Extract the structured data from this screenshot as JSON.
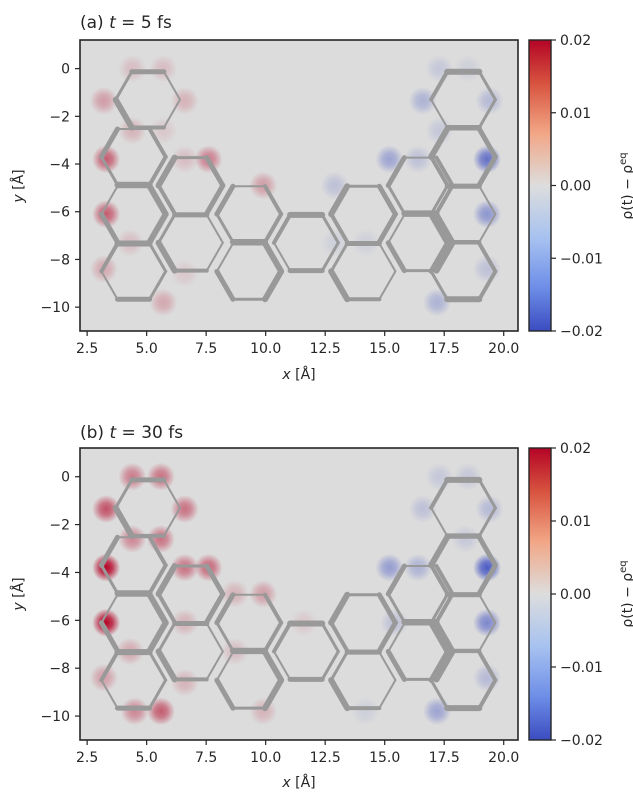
{
  "colorbar": {
    "label": "ρ(t) − ρ^eq",
    "label_main": "ρ(t) − ρ",
    "label_sup": "eq",
    "ticks": [
      "0.02",
      "0.01",
      "0.00",
      "−0.01",
      "−0.02"
    ],
    "tick_values": [
      0.02,
      0.01,
      0.0,
      -0.01,
      -0.02
    ],
    "range": [
      -0.02,
      0.02
    ],
    "colormap": "coolwarm",
    "colors": {
      "high": "#b40426",
      "mid": "#dddddd",
      "low": "#3b4cc0"
    }
  },
  "chart_data": [
    {
      "type": "heatmap",
      "title": "(a) t = 5 fs",
      "title_prefix": "(a) ",
      "title_var": "t",
      "title_rest": " = 5 fs",
      "xlabel_var": "x",
      "xlabel_unit": " [Å]",
      "ylabel_var": "y",
      "ylabel_unit": " [Å]",
      "xlim": [
        2.2,
        20.6
      ],
      "ylim": [
        -11.0,
        1.2
      ],
      "x_ticks": [
        "2.5",
        "5.0",
        "7.5",
        "10.0",
        "12.5",
        "15.0",
        "17.5",
        "20.0"
      ],
      "y_ticks": [
        "0",
        "−2",
        "−4",
        "−6",
        "−8",
        "−10"
      ],
      "x_tick_values": [
        2.5,
        5.0,
        7.5,
        10.0,
        12.5,
        15.0,
        17.5,
        20.0
      ],
      "y_tick_values": [
        0,
        -2,
        -4,
        -6,
        -8,
        -10
      ],
      "background": "#dcdcdc",
      "bond_color": "#999999",
      "atoms": [
        {
          "x": 4.4,
          "y": 0.0,
          "v": 0.003
        },
        {
          "x": 5.7,
          "y": 0.0,
          "v": 0.003
        },
        {
          "x": 3.2,
          "y": -1.35,
          "v": 0.006
        },
        {
          "x": 6.6,
          "y": -1.35,
          "v": 0.004
        },
        {
          "x": 4.4,
          "y": -2.6,
          "v": 0.004
        },
        {
          "x": 5.7,
          "y": -2.6,
          "v": 0.002
        },
        {
          "x": 3.3,
          "y": -3.8,
          "v": 0.012
        },
        {
          "x": 6.6,
          "y": -3.8,
          "v": 0.003
        },
        {
          "x": 7.6,
          "y": -3.8,
          "v": 0.009
        },
        {
          "x": 9.9,
          "y": -4.9,
          "v": 0.006
        },
        {
          "x": 3.3,
          "y": -6.1,
          "v": 0.012
        },
        {
          "x": 4.3,
          "y": -7.3,
          "v": 0.003
        },
        {
          "x": 3.2,
          "y": -8.4,
          "v": 0.005
        },
        {
          "x": 5.7,
          "y": -9.8,
          "v": 0.005
        },
        {
          "x": 6.6,
          "y": -8.6,
          "v": 0.002
        },
        {
          "x": 17.3,
          "y": 0.0,
          "v": -0.003
        },
        {
          "x": 18.5,
          "y": 0.0,
          "v": -0.002
        },
        {
          "x": 16.6,
          "y": -1.35,
          "v": -0.006
        },
        {
          "x": 19.4,
          "y": -1.35,
          "v": -0.005
        },
        {
          "x": 17.3,
          "y": -2.6,
          "v": -0.003
        },
        {
          "x": 15.2,
          "y": -3.8,
          "v": -0.008
        },
        {
          "x": 16.4,
          "y": -3.8,
          "v": -0.004
        },
        {
          "x": 19.3,
          "y": -3.8,
          "v": -0.015
        },
        {
          "x": 12.9,
          "y": -4.9,
          "v": -0.004
        },
        {
          "x": 19.3,
          "y": -6.1,
          "v": -0.01
        },
        {
          "x": 12.9,
          "y": -7.3,
          "v": -0.002
        },
        {
          "x": 19.3,
          "y": -8.4,
          "v": -0.004
        },
        {
          "x": 17.2,
          "y": -9.8,
          "v": -0.006
        },
        {
          "x": 14.2,
          "y": -7.3,
          "v": -0.002
        }
      ]
    },
    {
      "type": "heatmap",
      "title": "(b) t = 30 fs",
      "title_prefix": "(b) ",
      "title_var": "t",
      "title_rest": " = 30 fs",
      "xlabel_var": "x",
      "xlabel_unit": " [Å]",
      "ylabel_var": "y",
      "ylabel_unit": " [Å]",
      "xlim": [
        2.2,
        20.6
      ],
      "ylim": [
        -11.0,
        1.2
      ],
      "x_ticks": [
        "2.5",
        "5.0",
        "7.5",
        "10.0",
        "12.5",
        "15.0",
        "17.5",
        "20.0"
      ],
      "y_ticks": [
        "0",
        "−2",
        "−4",
        "−6",
        "−8",
        "−10"
      ],
      "x_tick_values": [
        2.5,
        5.0,
        7.5,
        10.0,
        12.5,
        15.0,
        17.5,
        20.0
      ],
      "y_tick_values": [
        0,
        -2,
        -4,
        -6,
        -8,
        -10
      ],
      "background": "#dcdcdc",
      "bond_color": "#999999",
      "atoms": [
        {
          "x": 4.4,
          "y": 0.0,
          "v": 0.009
        },
        {
          "x": 5.6,
          "y": 0.0,
          "v": 0.01
        },
        {
          "x": 3.3,
          "y": -1.35,
          "v": 0.013
        },
        {
          "x": 6.6,
          "y": -1.35,
          "v": 0.01
        },
        {
          "x": 4.4,
          "y": -2.6,
          "v": 0.008
        },
        {
          "x": 5.6,
          "y": -2.6,
          "v": 0.01
        },
        {
          "x": 3.3,
          "y": -3.8,
          "v": 0.02
        },
        {
          "x": 6.6,
          "y": -3.8,
          "v": 0.01
        },
        {
          "x": 7.6,
          "y": -3.8,
          "v": 0.011
        },
        {
          "x": 8.7,
          "y": -4.9,
          "v": 0.004
        },
        {
          "x": 9.9,
          "y": -4.9,
          "v": 0.006
        },
        {
          "x": 3.3,
          "y": -6.1,
          "v": 0.02
        },
        {
          "x": 4.3,
          "y": -7.3,
          "v": 0.005
        },
        {
          "x": 6.6,
          "y": -6.1,
          "v": 0.004
        },
        {
          "x": 3.2,
          "y": -8.4,
          "v": 0.006
        },
        {
          "x": 4.5,
          "y": -9.8,
          "v": 0.008
        },
        {
          "x": 5.6,
          "y": -9.8,
          "v": 0.012
        },
        {
          "x": 6.6,
          "y": -8.6,
          "v": 0.004
        },
        {
          "x": 8.7,
          "y": -7.3,
          "v": 0.003
        },
        {
          "x": 9.9,
          "y": -9.8,
          "v": 0.004
        },
        {
          "x": 11.6,
          "y": -6.1,
          "v": 0.002
        },
        {
          "x": 17.3,
          "y": 0.0,
          "v": -0.003
        },
        {
          "x": 18.5,
          "y": 0.0,
          "v": -0.003
        },
        {
          "x": 16.6,
          "y": -1.35,
          "v": -0.004
        },
        {
          "x": 19.4,
          "y": -1.35,
          "v": -0.005
        },
        {
          "x": 15.2,
          "y": -3.8,
          "v": -0.009
        },
        {
          "x": 16.4,
          "y": -3.8,
          "v": -0.006
        },
        {
          "x": 18.4,
          "y": -2.6,
          "v": -0.003
        },
        {
          "x": 19.3,
          "y": -3.8,
          "v": -0.018
        },
        {
          "x": 19.3,
          "y": -6.1,
          "v": -0.012
        },
        {
          "x": 15.4,
          "y": -6.1,
          "v": -0.004
        },
        {
          "x": 19.3,
          "y": -8.4,
          "v": -0.005
        },
        {
          "x": 17.2,
          "y": -9.8,
          "v": -0.008
        },
        {
          "x": 14.2,
          "y": -9.8,
          "v": -0.002
        }
      ]
    }
  ]
}
